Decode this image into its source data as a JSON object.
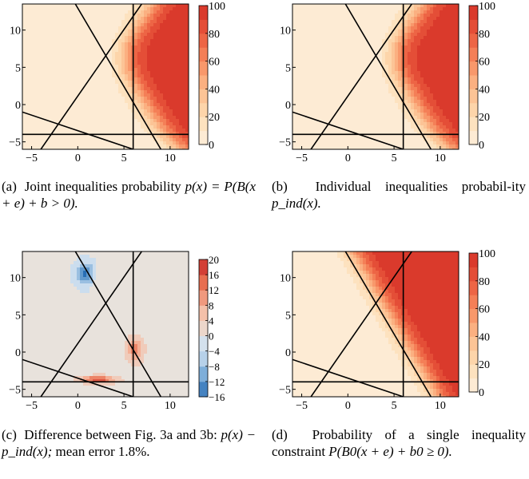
{
  "chart_data": [
    {
      "panel": "a",
      "type": "heatmap",
      "field": "joint",
      "xlim": [
        -6,
        12
      ],
      "ylim": [
        -6,
        13.5
      ],
      "xticks": [
        -5,
        0,
        5,
        10
      ],
      "yticks": [
        -5,
        0,
        5,
        10
      ],
      "colorbar": {
        "min": 0,
        "max": 100,
        "ticks": [
          100,
          80,
          60,
          40,
          20,
          0
        ],
        "palette": "orange-red"
      },
      "lines": [
        {
          "type": "vertical",
          "x": 6
        },
        {
          "type": "horizontal",
          "y": -4
        },
        {
          "type": "segment",
          "points": [
            [
              -4,
              -6
            ],
            [
              7.2,
              14
            ]
          ]
        },
        {
          "type": "segment",
          "points": [
            [
              -0.5,
              14
            ],
            [
              9,
              -6
            ]
          ]
        },
        {
          "type": "segment",
          "points": [
            [
              -6,
              -1
            ],
            [
              6,
              -6
            ]
          ]
        }
      ],
      "caption": {
        "label": "(a)",
        "text": "Joint inequalities probability",
        "math": "p(x) = P(B(x + e) + b > 0)."
      }
    },
    {
      "panel": "b",
      "type": "heatmap",
      "field": "individual",
      "xlim": [
        -6,
        12
      ],
      "ylim": [
        -6,
        13.5
      ],
      "xticks": [
        -5,
        0,
        5,
        10
      ],
      "yticks": [
        -5,
        0,
        5,
        10
      ],
      "colorbar": {
        "min": 0,
        "max": 100,
        "ticks": [
          100,
          80,
          60,
          40,
          20,
          0
        ],
        "palette": "orange-red"
      },
      "lines": [
        {
          "type": "vertical",
          "x": 6
        },
        {
          "type": "horizontal",
          "y": -4
        },
        {
          "type": "segment",
          "points": [
            [
              -4,
              -6
            ],
            [
              7.2,
              14
            ]
          ]
        },
        {
          "type": "segment",
          "points": [
            [
              -0.5,
              14
            ],
            [
              9,
              -6
            ]
          ]
        },
        {
          "type": "segment",
          "points": [
            [
              -6,
              -1
            ],
            [
              6,
              -6
            ]
          ]
        }
      ],
      "caption": {
        "label": "(b)",
        "text": "Individual inequalities probabil-ity",
        "math": "p_ind(x)."
      }
    },
    {
      "panel": "c",
      "type": "heatmap",
      "field": "difference",
      "xlim": [
        -6,
        12
      ],
      "ylim": [
        -6,
        13.5
      ],
      "xticks": [
        -5,
        0,
        5,
        10
      ],
      "yticks": [
        -5,
        0,
        5,
        10
      ],
      "colorbar": {
        "min": -16,
        "max": 20,
        "ticks": [
          20,
          16,
          12,
          8,
          4,
          0,
          -4,
          -8,
          -12,
          -16
        ],
        "palette": "diverging"
      },
      "lines": [
        {
          "type": "vertical",
          "x": 6
        },
        {
          "type": "horizontal",
          "y": -4
        },
        {
          "type": "segment",
          "points": [
            [
              -4,
              -6
            ],
            [
              7.2,
              14
            ]
          ]
        },
        {
          "type": "segment",
          "points": [
            [
              -0.5,
              14
            ],
            [
              9,
              -6
            ]
          ]
        },
        {
          "type": "segment",
          "points": [
            [
              -6,
              -1
            ],
            [
              6,
              -6
            ]
          ]
        }
      ],
      "caption": {
        "label": "(c)",
        "text": "Difference between Fig. 3a and 3b:",
        "math": "p(x) − p_ind(x);",
        "tail": "mean error 1.8%."
      }
    },
    {
      "panel": "d",
      "type": "heatmap",
      "field": "single",
      "xlim": [
        -6,
        12
      ],
      "ylim": [
        -6,
        13.5
      ],
      "xticks": [
        -5,
        0,
        5,
        10
      ],
      "yticks": [
        -5,
        0,
        5,
        10
      ],
      "colorbar": {
        "min": 0,
        "max": 100,
        "ticks": [
          100,
          80,
          60,
          40,
          20,
          0
        ],
        "palette": "orange-red"
      },
      "lines": [
        {
          "type": "vertical",
          "x": 6
        },
        {
          "type": "horizontal",
          "y": -4
        },
        {
          "type": "segment",
          "points": [
            [
              -4,
              -6
            ],
            [
              7.2,
              14
            ]
          ]
        },
        {
          "type": "segment",
          "points": [
            [
              -0.5,
              14
            ],
            [
              9,
              -6
            ]
          ]
        },
        {
          "type": "segment",
          "points": [
            [
              -6,
              -1
            ],
            [
              6,
              -6
            ]
          ]
        }
      ],
      "caption": {
        "label": "(d)",
        "text": "Probability of a single inequality constraint",
        "math": "P(B0(x + e) + b0 ≥ 0)."
      }
    }
  ]
}
